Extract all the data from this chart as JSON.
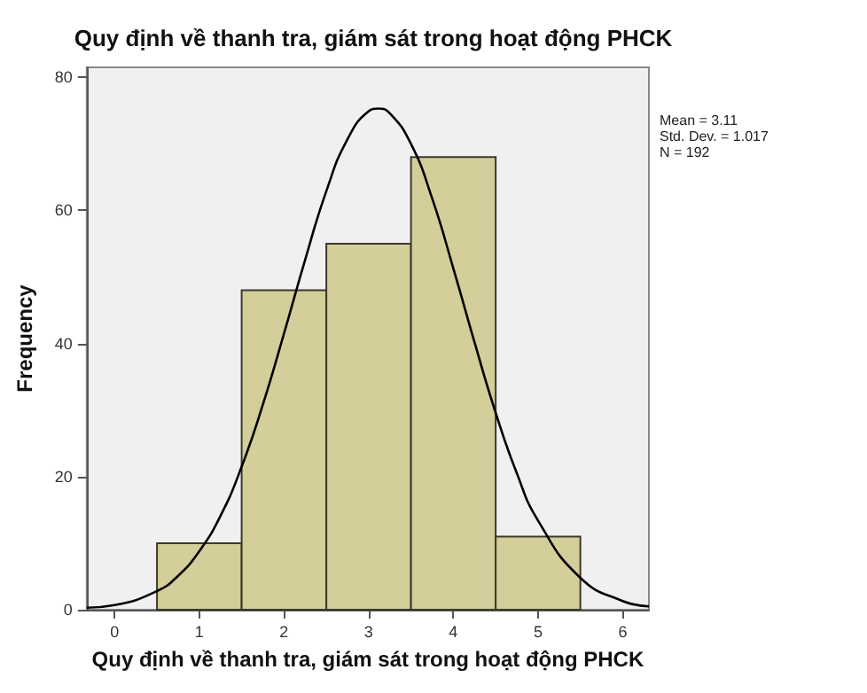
{
  "chart_data": {
    "type": "histogram",
    "title": "Quy định về thanh tra, giám sát trong hoạt động PHCK",
    "xlabel": "Quy định về thanh tra, giám sát trong hoạt động PHCK",
    "ylabel": "Frequency",
    "bins": [
      0.5,
      1.5,
      2.5,
      3.5,
      4.5,
      5.5
    ],
    "values": [
      10,
      48,
      55,
      68,
      11
    ],
    "color": "#d3ce9a",
    "series": [
      {
        "type": "line",
        "color": "#000000",
        "x": [
          -0.33,
          0,
          0.5,
          0.75,
          1,
          1.25,
          1.5,
          1.75,
          2,
          2.25,
          2.5,
          2.75,
          3,
          3.11,
          3.25,
          3.5,
          3.75,
          4,
          4.25,
          4.5,
          4.75,
          5,
          5.5,
          6,
          6.31
        ],
        "values": [
          0.3,
          0.7,
          2.8,
          5.1,
          8.8,
          14.1,
          21.5,
          30.8,
          41.5,
          52.6,
          62.9,
          70.7,
          74.9,
          75.3,
          74.6,
          70.0,
          61.8,
          51.3,
          40.2,
          29.6,
          20.5,
          13.4,
          4.8,
          1.3,
          0.5
        ]
      }
    ],
    "xlim": [
      -0.33,
      6.31
    ],
    "ylim": [
      0,
      81.5
    ],
    "xticks": [
      0,
      1,
      2,
      3,
      4,
      5,
      6
    ],
    "yticks": [
      0,
      20,
      40,
      60,
      80
    ],
    "grid": false,
    "marker": "none",
    "annotations": [
      "Mean = 3.11",
      "Std. Dev. = 1.017",
      "N = 192"
    ]
  }
}
